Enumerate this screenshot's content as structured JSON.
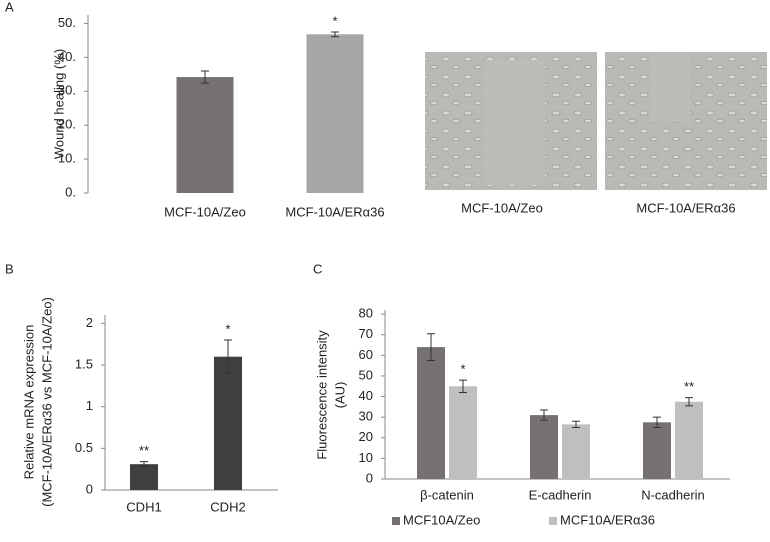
{
  "chart_data": [
    {
      "type": "bar",
      "label": "A",
      "ylabel": [
        "Wound healing (%)"
      ],
      "categories": [
        "MCF-10A/Zeo",
        "MCF-10A/ERα36"
      ],
      "values": [
        34.2,
        46.8
      ],
      "errors": [
        1.8,
        0.7
      ],
      "colors": [
        "#767171",
        "#a6a6a6"
      ],
      "annotations": [
        null,
        "*"
      ],
      "ylim": [
        0,
        52.5
      ],
      "yticks": [
        {
          "value": 0,
          "label": "0."
        },
        {
          "value": 10,
          "label": "10."
        },
        {
          "value": 20,
          "label": "20."
        },
        {
          "value": 30,
          "label": "30."
        },
        {
          "value": 40,
          "label": "40."
        },
        {
          "value": 50,
          "label": "50."
        }
      ]
    },
    {
      "type": "bar",
      "label": "B",
      "ylabel": [
        "Relative mRNA expression",
        "(MCF-10A/ERα36 vs MCF-10A/Zeo)"
      ],
      "categories": [
        "CDH1",
        "CDH2"
      ],
      "values": [
        0.31,
        1.6
      ],
      "errors": [
        0.03,
        0.2
      ],
      "colors": [
        "#404040",
        "#404040"
      ],
      "annotations": [
        "**",
        "*"
      ],
      "ylim": [
        0,
        2.1
      ],
      "yticks": [
        0,
        0.5,
        1,
        1.5,
        2
      ]
    },
    {
      "type": "bar",
      "label": "C",
      "ylabel": [
        "Fluorescence intensity",
        "(AU)"
      ],
      "categories": [
        "β-catenin",
        "E-cadherin",
        "N-cadherin"
      ],
      "series": [
        {
          "name": "MCF10A/Zeo",
          "color": "#767171",
          "values": [
            64,
            31,
            27.5
          ],
          "errors": [
            6.5,
            2.5,
            2.5
          ],
          "annotations": [
            null,
            null,
            null
          ]
        },
        {
          "name": "MCF10A/ERα36",
          "color": "#bfbfbf",
          "values": [
            45,
            26.5,
            37.5
          ],
          "errors": [
            3,
            1.5,
            2
          ],
          "annotations": [
            "*",
            null,
            "**"
          ]
        }
      ],
      "ylim": [
        0,
        82
      ],
      "yticks": [
        0,
        10,
        20,
        30,
        40,
        50,
        60,
        70,
        80
      ]
    }
  ],
  "images": [
    {
      "caption": "MCF-10A/Zeo"
    },
    {
      "caption": "MCF-10A/ERα36"
    }
  ]
}
